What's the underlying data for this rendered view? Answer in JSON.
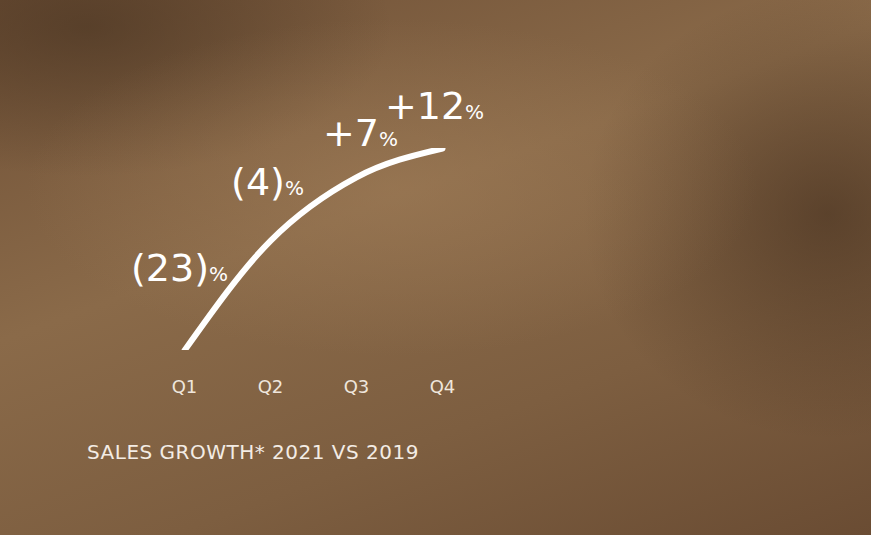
{
  "chart_data": {
    "type": "line",
    "title": "SALES GROWTH* 2021 VS 2019",
    "categories": [
      "Q1",
      "Q2",
      "Q3",
      "Q4"
    ],
    "values": [
      -23,
      -4,
      7,
      12
    ],
    "value_labels": [
      "(23)%",
      "(4)%",
      "+7%",
      "+12%"
    ],
    "color": "#ffffff",
    "data_labels": true,
    "tick_labels": "x"
  }
}
